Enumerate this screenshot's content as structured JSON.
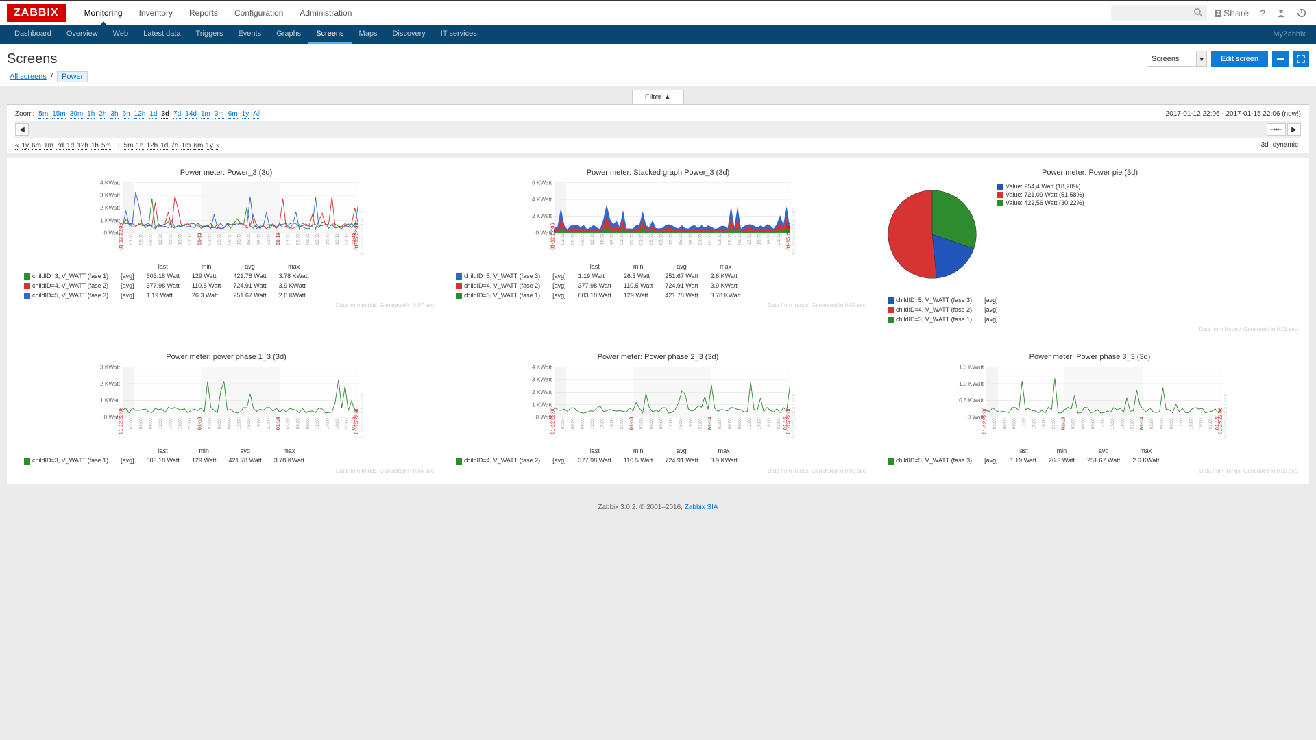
{
  "logo": "ZABBIX",
  "main_nav": [
    "Monitoring",
    "Inventory",
    "Reports",
    "Configuration",
    "Administration"
  ],
  "main_nav_active": 0,
  "top_right": {
    "share": "Share",
    "search_placeholder": ""
  },
  "sub_nav": [
    "Dashboard",
    "Overview",
    "Web",
    "Latest data",
    "Triggers",
    "Events",
    "Graphs",
    "Screens",
    "Maps",
    "Discovery",
    "IT services"
  ],
  "sub_nav_active": 7,
  "sub_right": "MyZabbix",
  "page_title": "Screens",
  "dropdown_selected": "Screens",
  "edit_button": "Edit screen",
  "breadcrumb": {
    "all": "All screens",
    "current": "Power"
  },
  "filter_label": "Filter ▲",
  "zoom": {
    "label": "Zoom:",
    "options": [
      "5m",
      "15m",
      "30m",
      "1h",
      "2h",
      "3h",
      "6h",
      "12h",
      "1d",
      "3d",
      "7d",
      "14d",
      "1m",
      "3m",
      "6m",
      "1y",
      "All"
    ],
    "active": "3d"
  },
  "time_range": "2017-01-12 22:06 - 2017-01-15 22:06 (now!)",
  "back": {
    "left_pre": [
      "«",
      "1y",
      "6m",
      "1m",
      "7d",
      "1d",
      "12h",
      "1h",
      "5m"
    ],
    "right_post": [
      "5m",
      "1h",
      "12h",
      "1d",
      "7d",
      "1m",
      "6m",
      "1y",
      "»"
    ],
    "mode_3d": "3d",
    "mode_dynamic": "dynamic"
  },
  "charts": {
    "c1": {
      "title": "Power meter: Power_3 (3d)",
      "yaxis": [
        "0 Watt",
        "1 KWatt",
        "2 KWatt",
        "3 KWatt",
        "4 KWatt"
      ],
      "xlabels_dates": [
        "01-12 22:06",
        "01-13",
        "01-14",
        "01-15",
        "01-15 22:06"
      ],
      "xlabels_times": [
        "03:00",
        "06:00",
        "09:00",
        "12:00",
        "15:00",
        "18:00",
        "21:00",
        "00:00",
        "03:00",
        "06:00",
        "09:00",
        "12:00",
        "15:00",
        "18:00",
        "21:00",
        "00:00",
        "03:00",
        "06:00",
        "09:00",
        "12:00",
        "15:00",
        "18:00",
        "21:00"
      ],
      "series": [
        {
          "name": "childID=3, V_WATT (fase 1)",
          "color": "#2e8b2e",
          "agg": "[avg]",
          "last": "603.18 Watt",
          "min": "129 Watt",
          "avg": "421.78 Watt",
          "max": "3.78 KWatt"
        },
        {
          "name": "childID=4, V_WATT (fase 2)",
          "color": "#d63333",
          "agg": "[avg]",
          "last": "377.98 Watt",
          "min": "110.5 Watt",
          "avg": "724.91 Watt",
          "max": "3.9 KWatt"
        },
        {
          "name": "childID=5, V_WATT (fase 3)",
          "color": "#3366cc",
          "agg": "[avg]",
          "last": "1.19 Watt",
          "min": "26.3 Watt",
          "avg": "251.67 Watt",
          "max": "2.6 KWatt"
        }
      ],
      "data_note": "Data from trends. Generated in 0.07 sec."
    },
    "c2": {
      "title": "Power meter: Stacked graph Power_3 (3d)",
      "yaxis": [
        "0 Watt",
        "2 KWatt",
        "4 KWatt",
        "6 KWatt"
      ],
      "series": [
        {
          "name": "childID=5, V_WATT (fase 3)",
          "color": "#3366cc",
          "agg": "[avg]",
          "last": "1.19 Watt",
          "min": "26.3 Watt",
          "avg": "251.67 Watt",
          "max": "2.6 KWatt"
        },
        {
          "name": "childID=4, V_WATT (fase 2)",
          "color": "#d63333",
          "agg": "[avg]",
          "last": "377.98 Watt",
          "min": "110.5 Watt",
          "avg": "724.91 Watt",
          "max": "3.9 KWatt"
        },
        {
          "name": "childID=3, V_WATT (fase 1)",
          "color": "#2e8b2e",
          "agg": "[avg]",
          "last": "603.18 Watt",
          "min": "129 Watt",
          "avg": "421.78 Watt",
          "max": "3.78 KWatt"
        }
      ],
      "data_note": "Data from trends. Generated in 0.09 sec."
    },
    "c3": {
      "title": "Power meter: Power pie (3d)",
      "slices": [
        {
          "label": "Value: 254,4 Watt (18,20%)",
          "color": "#2255bb",
          "pct": 18.2
        },
        {
          "label": "Value: 721,09 Watt (51,58%)",
          "color": "#d63333",
          "pct": 51.58
        },
        {
          "label": "Value: 422,56 Watt (30,22%)",
          "color": "#2e8b2e",
          "pct": 30.22
        }
      ],
      "legend_items": [
        {
          "name": "childID=5, V_WATT (fase 3)",
          "color": "#2255bb",
          "agg": "[avg]"
        },
        {
          "name": "childID=4, V_WATT (fase 2)",
          "color": "#d63333",
          "agg": "[avg]"
        },
        {
          "name": "childID=3, V_WATT (fase 1)",
          "color": "#2e8b2e",
          "agg": "[avg]"
        }
      ],
      "data_note": "Data from history. Generated in 0.01 sec."
    },
    "c4": {
      "title": "Power meter: power phase 1_3 (3d)",
      "yaxis": [
        "0 Watt",
        "1 KWatt",
        "2 KWatt",
        "3 KWatt"
      ],
      "series": [
        {
          "name": "childID=3, V_WATT (fase 1)",
          "color": "#2e8b2e",
          "agg": "[avg]",
          "last": "603.18 Watt",
          "min": "129 Watt",
          "avg": "421.78 Watt",
          "max": "3.78 KWatt"
        }
      ],
      "data_note": "Data from trends. Generated in 0.04 sec."
    },
    "c5": {
      "title": "Power meter: Power phase 2_3 (3d)",
      "yaxis": [
        "0 Watt",
        "1 KWatt",
        "2 KWatt",
        "3 KWatt",
        "4 KWatt"
      ],
      "series": [
        {
          "name": "childID=4, V_WATT (fase 2)",
          "color": "#2e8b2e",
          "agg": "[avg]",
          "last": "377.98 Watt",
          "min": "110.5 Watt",
          "avg": "724.91 Watt",
          "max": "3.9 KWatt"
        }
      ],
      "data_note": "Data from trends. Generated in 0.03 sec."
    },
    "c6": {
      "title": "Power meter: Power phase 3_3 (3d)",
      "yaxis": [
        "0 Watt",
        "0,5 KWatt",
        "1,0 KWatt",
        "1,5 KWatt"
      ],
      "series": [
        {
          "name": "childID=5, V_WATT (fase 3)",
          "color": "#2e8b2e",
          "agg": "[avg]",
          "last": "1.19 Watt",
          "min": "26.3 Watt",
          "avg": "251.67 Watt",
          "max": "2.6 KWatt"
        }
      ],
      "data_note": "Data from trends. Generated in 0.03 sec."
    }
  },
  "stat_headers": [
    "last",
    "min",
    "avg",
    "max"
  ],
  "footer": {
    "text": "Zabbix 3.0.2. © 2001–2016, ",
    "link": "Zabbix SIA"
  },
  "colors": {
    "bg": "#ebebeb",
    "primary": "#0e7cd6",
    "navbar": "#0a4770",
    "logo": "#d40000"
  }
}
